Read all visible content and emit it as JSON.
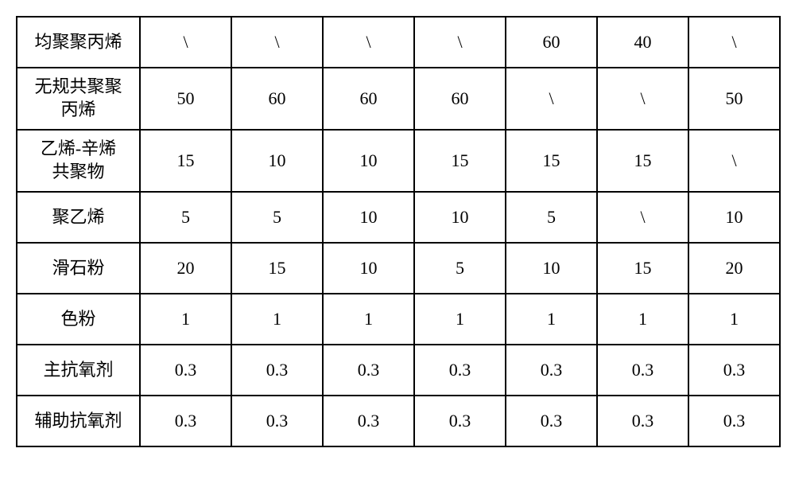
{
  "table": {
    "border_color": "#000000",
    "background_color": "#ffffff",
    "font_size": 22,
    "label_col_width": 155,
    "data_col_width": 115,
    "row_heights": {
      "single": 64,
      "double": 78
    },
    "rows": [
      {
        "label": "均聚聚丙烯",
        "height": "single",
        "cells": [
          "\\",
          "\\",
          "\\",
          "\\",
          "60",
          "40",
          "\\"
        ]
      },
      {
        "label": "无规共聚聚丙烯",
        "height": "double",
        "cells": [
          "50",
          "60",
          "60",
          "60",
          "\\",
          "\\",
          "50"
        ]
      },
      {
        "label": "乙烯-辛烯共聚物",
        "height": "double",
        "cells": [
          "15",
          "10",
          "10",
          "15",
          "15",
          "15",
          "\\"
        ]
      },
      {
        "label": "聚乙烯",
        "height": "single",
        "cells": [
          "5",
          "5",
          "10",
          "10",
          "5",
          "\\",
          "10"
        ]
      },
      {
        "label": "滑石粉",
        "height": "single",
        "cells": [
          "20",
          "15",
          "10",
          "5",
          "10",
          "15",
          "20"
        ]
      },
      {
        "label": "色粉",
        "height": "single",
        "cells": [
          "1",
          "1",
          "1",
          "1",
          "1",
          "1",
          "1"
        ]
      },
      {
        "label": "主抗氧剂",
        "height": "single",
        "cells": [
          "0.3",
          "0.3",
          "0.3",
          "0.3",
          "0.3",
          "0.3",
          "0.3"
        ]
      },
      {
        "label": "辅助抗氧剂",
        "height": "single",
        "cells": [
          "0.3",
          "0.3",
          "0.3",
          "0.3",
          "0.3",
          "0.3",
          "0.3"
        ]
      }
    ]
  }
}
